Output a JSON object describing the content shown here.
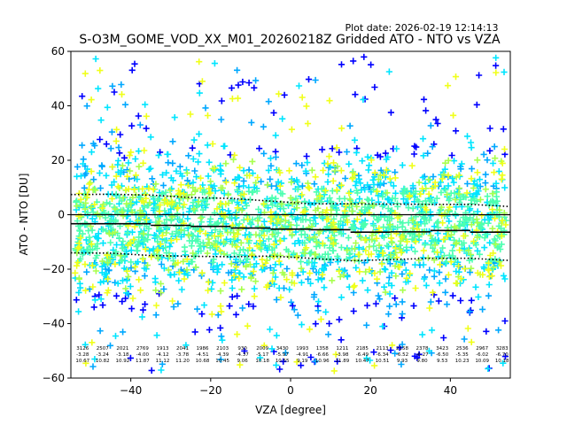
{
  "chart_data": {
    "type": "scatter",
    "title": "S-O3M_GOME_VOD_XX_M01_20260218Z Gridded ATO - NTO vs VZA",
    "plot_date": "Plot date: 2026-02-19 12:14:13",
    "xlabel": "VZA [degree]",
    "ylabel": "ATO - NTO [DU]",
    "xlim": [
      -55,
      55
    ],
    "ylim": [
      -60,
      60
    ],
    "x_ticks": [
      -40,
      -20,
      0,
      20,
      40
    ],
    "x_tick_labels": [
      "−40",
      "−20",
      "0",
      "20",
      "40"
    ],
    "y_ticks": [
      -60,
      -40,
      -20,
      0,
      20,
      40,
      60
    ],
    "y_tick_labels": [
      "−60",
      "−40",
      "−20",
      "0",
      "20",
      "40",
      "60"
    ],
    "zero_line": 0,
    "marker": "+",
    "colormap": [
      "#0000ff",
      "#00a8ff",
      "#00e5ff",
      "#4dffb0",
      "#a8ff4d",
      "#f0ff1a"
    ],
    "bins": [
      {
        "count": "3126",
        "mean": "-3.28",
        "std": "10.67"
      },
      {
        "count": "2507",
        "mean": "-3.24",
        "std": "10.82"
      },
      {
        "count": "2021",
        "mean": "-3.18",
        "std": "10.92"
      },
      {
        "count": "2769",
        "mean": "-4.00",
        "std": "11.87"
      },
      {
        "count": "1913",
        "mean": "-4.12",
        "std": "11.12"
      },
      {
        "count": "2041",
        "mean": "-3.78",
        "std": "11.20"
      },
      {
        "count": "1986",
        "mean": "-4.51",
        "std": "10.68"
      },
      {
        "count": "2103",
        "mean": "-4.39",
        "std": "10.45"
      },
      {
        "count": "930",
        "mean": "-4.37",
        "std": "9.06"
      },
      {
        "count": "2009",
        "mean": "-5.17",
        "std": "10.18"
      },
      {
        "count": "3430",
        "mean": "-5.97",
        "std": "10.55"
      },
      {
        "count": "1993",
        "mean": "-4.91",
        "std": "9.19"
      },
      {
        "count": "1358",
        "mean": "-6.66",
        "std": "10.96"
      },
      {
        "count": "1211",
        "mean": "-3.98",
        "std": "11.89"
      },
      {
        "count": "2185",
        "mean": "-6.49",
        "std": "10.47"
      },
      {
        "count": "2113",
        "mean": "-6.34",
        "std": "10.51"
      },
      {
        "count": "2158",
        "mean": "-6.52",
        "std": "9.93"
      },
      {
        "count": "2378",
        "mean": "-6.27",
        "std": "9.80"
      },
      {
        "count": "3423",
        "mean": "-6.50",
        "std": "9.53"
      },
      {
        "count": "2536",
        "mean": "-5.35",
        "std": "10.23"
      },
      {
        "count": "2967",
        "mean": "-6.02",
        "std": "10.09"
      },
      {
        "count": "3283",
        "mean": "-6.70",
        "std": "10.18"
      }
    ],
    "mean_line": [
      {
        "x0": -55,
        "x1": -45,
        "y": -3.3
      },
      {
        "x0": -45,
        "x1": -35,
        "y": -3.3
      },
      {
        "x0": -35,
        "x1": -25,
        "y": -3.9
      },
      {
        "x0": -25,
        "x1": -15,
        "y": -4.3
      },
      {
        "x0": -15,
        "x1": -5,
        "y": -4.9
      },
      {
        "x0": -5,
        "x1": 5,
        "y": -5.3
      },
      {
        "x0": 5,
        "x1": 15,
        "y": -5.5
      },
      {
        "x0": 15,
        "x1": 25,
        "y": -6.4
      },
      {
        "x0": 25,
        "x1": 35,
        "y": -6.3
      },
      {
        "x0": 35,
        "x1": 45,
        "y": -5.8
      },
      {
        "x0": 45,
        "x1": 55,
        "y": -6.4
      }
    ],
    "std_upper": [
      [
        -55,
        7.4
      ],
      [
        -45,
        7.5
      ],
      [
        -35,
        7.2
      ],
      [
        -25,
        6.3
      ],
      [
        -15,
        6.0
      ],
      [
        -5,
        5.0
      ],
      [
        5,
        4.0
      ],
      [
        15,
        4.0
      ],
      [
        25,
        3.9
      ],
      [
        35,
        3.8
      ],
      [
        45,
        3.8
      ],
      [
        55,
        3.0
      ]
    ],
    "std_lower": [
      [
        -55,
        -14.0
      ],
      [
        -45,
        -14.1
      ],
      [
        -35,
        -15.0
      ],
      [
        -25,
        -15.3
      ],
      [
        -15,
        -15.4
      ],
      [
        -5,
        -15.2
      ],
      [
        5,
        -16.0
      ],
      [
        15,
        -16.9
      ],
      [
        25,
        -16.5
      ],
      [
        35,
        -16.0
      ],
      [
        45,
        -16.0
      ],
      [
        55,
        -16.8
      ]
    ],
    "scatter_spread": {
      "core_low": -30,
      "core_high": 22,
      "extreme_low": -58,
      "extreme_high": 58
    }
  }
}
